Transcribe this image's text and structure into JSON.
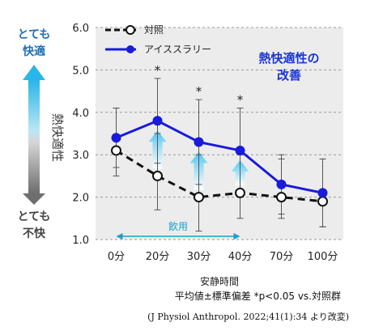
{
  "chart_data": {
    "type": "line",
    "categories": [
      "0分",
      "20分",
      "30分",
      "40分",
      "70分",
      "100分"
    ],
    "xlabel": "安静時間",
    "ylabel": "熱快適性",
    "ylim": [
      1.0,
      6.0
    ],
    "yticks": [
      "1.0",
      "2.0",
      "3.0",
      "4.0",
      "5.0",
      "6.0"
    ],
    "grid": true,
    "legend_position": "top-left",
    "series": [
      {
        "name": "対照",
        "values": [
          3.1,
          2.5,
          2.0,
          2.1,
          2.0,
          1.9
        ],
        "error_upper": [
          4.1,
          3.5,
          3.0,
          3.0,
          2.9,
          2.9
        ],
        "error_lower": [
          2.5,
          1.7,
          1.2,
          1.5,
          1.5,
          1.3
        ],
        "color": "#111111",
        "style": "dashed",
        "marker": "open-circle"
      },
      {
        "name": "アイススラリー",
        "values": [
          3.4,
          3.8,
          3.3,
          3.1,
          2.3,
          2.1
        ],
        "error_upper": [
          4.1,
          4.8,
          4.3,
          4.1,
          3.0,
          2.9
        ],
        "error_lower": [
          2.7,
          2.8,
          2.3,
          2.1,
          1.6,
          1.3
        ],
        "color": "#1a1adb",
        "style": "solid",
        "marker": "filled-circle"
      }
    ],
    "significance": [
      {
        "category": "20分",
        "mark": "*"
      },
      {
        "category": "30分",
        "mark": "*"
      },
      {
        "category": "40分",
        "mark": "*"
      }
    ],
    "improvement_arrows": [
      "20分",
      "30分",
      "40分"
    ],
    "annotation": [
      "熱快適性の",
      "改善"
    ],
    "drink_label": "飲用",
    "drink_range": [
      "0分",
      "40分"
    ],
    "scale_top": [
      "とても",
      "快適"
    ],
    "scale_bottom": [
      "とても",
      "不快"
    ],
    "footnote1": "平均値±標準偏差 *p<0.05 vs.対照群",
    "footnote2": "(J Physiol Anthropol. 2022;41(1):34 より改変)"
  }
}
